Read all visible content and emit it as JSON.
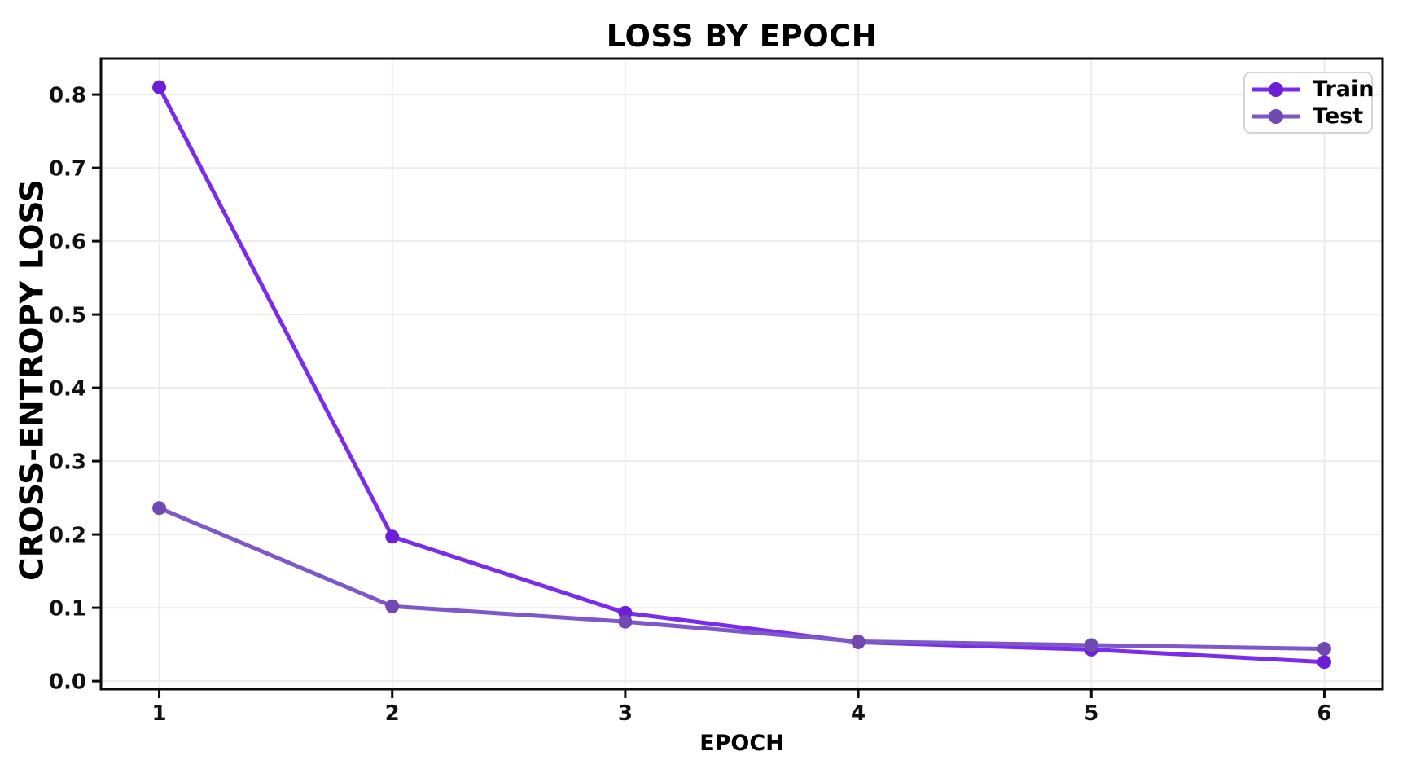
{
  "chart_data": {
    "type": "line",
    "title": "LOSS BY EPOCH",
    "xlabel": "EPOCH",
    "ylabel": "CROSS-ENTROPY LOSS",
    "x": [
      1,
      2,
      3,
      4,
      5,
      6
    ],
    "series": [
      {
        "name": "Train",
        "values": [
          0.81,
          0.197,
          0.093,
          0.053,
          0.043,
          0.026
        ],
        "line_color": "#7B2BEC",
        "marker_color": "#6D1ED6"
      },
      {
        "name": "Test",
        "values": [
          0.236,
          0.102,
          0.081,
          0.054,
          0.049,
          0.044
        ],
        "line_color": "#7E57C8",
        "marker_color": "#7149B2"
      }
    ],
    "xticks": [
      1,
      2,
      3,
      4,
      5,
      6
    ],
    "yticks": [
      0.0,
      0.1,
      0.2,
      0.3,
      0.4,
      0.5,
      0.6,
      0.7,
      0.8
    ],
    "xlim": [
      0.75,
      6.25
    ],
    "ylim": [
      -0.011,
      0.849
    ],
    "grid": true,
    "grid_color": "#ECECEC",
    "spine_color": "#0a0a0a",
    "legend_position": "upper right"
  }
}
